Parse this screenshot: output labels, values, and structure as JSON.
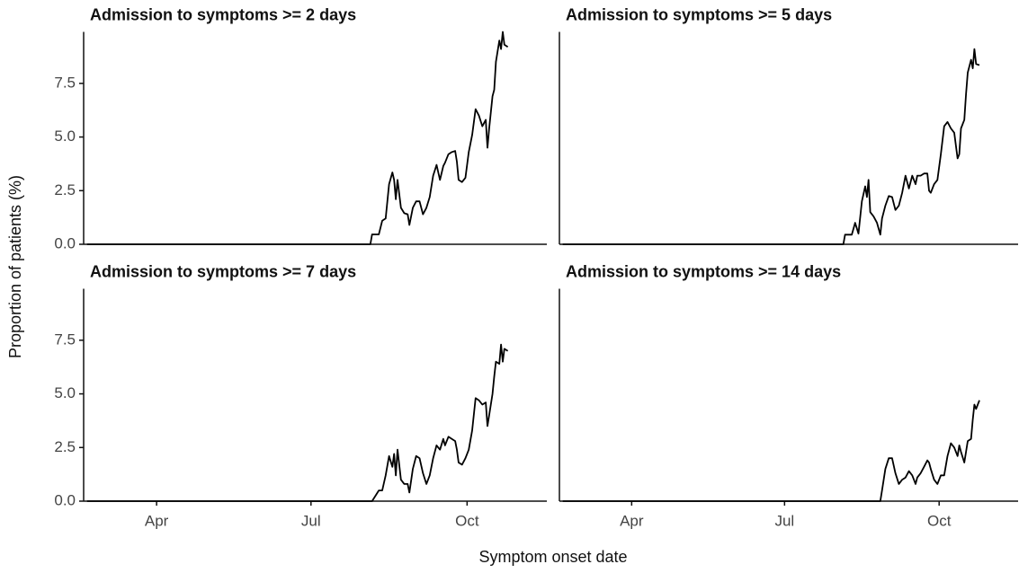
{
  "shared": {
    "xlabel": "Symptom onset date",
    "ylabel": "Proportion of patients (%)"
  },
  "chart_data": [
    {
      "type": "line",
      "title": "Admission to symptoms >= 2 days",
      "color": "#000000",
      "x": [
        50,
        217,
        218,
        222,
        224,
        226,
        228,
        230,
        231,
        232,
        233,
        235,
        237,
        239,
        240,
        242,
        244,
        246,
        248,
        250,
        252,
        254,
        256,
        258,
        260,
        261,
        263,
        265,
        267,
        268,
        269,
        271,
        273,
        275,
        277,
        279,
        281,
        283,
        285,
        286,
        287,
        289,
        290,
        291,
        293,
        294,
        295,
        296,
        298
      ],
      "values": [
        0,
        0,
        0.46,
        0.46,
        1.1,
        1.2,
        2.8,
        3.35,
        3.0,
        2.1,
        3.0,
        1.7,
        1.45,
        1.4,
        0.9,
        1.7,
        2.0,
        2.0,
        1.4,
        1.7,
        2.2,
        3.2,
        3.7,
        3.0,
        3.65,
        3.8,
        4.2,
        4.3,
        4.35,
        3.85,
        3.0,
        2.9,
        3.1,
        4.3,
        5.1,
        6.3,
        6.0,
        5.5,
        5.8,
        4.5,
        5.4,
        6.9,
        7.2,
        8.5,
        9.5,
        9.1,
        9.9,
        9.3,
        9.2
      ],
      "xlim": [
        48,
        321
      ],
      "ylim": [
        0,
        9.9
      ],
      "yticks": [
        {
          "value": 0,
          "label": "0.0"
        },
        2.5,
        {
          "value": 5,
          "label": "5.0"
        },
        7.5
      ]
    },
    {
      "type": "line",
      "title": "Admission to symptoms >= 5 days",
      "color": "#000000",
      "x": [
        50,
        217,
        218,
        222,
        224,
        226,
        228,
        230,
        231,
        232,
        233,
        235,
        237,
        239,
        240,
        242,
        244,
        246,
        248,
        250,
        252,
        254,
        256,
        258,
        260,
        261,
        263,
        265,
        267,
        268,
        269,
        271,
        273,
        275,
        277,
        279,
        281,
        283,
        285,
        286,
        287,
        289,
        290,
        291,
        293,
        294,
        295,
        296,
        298
      ],
      "values": [
        0,
        0,
        0.45,
        0.45,
        1.0,
        0.5,
        2.0,
        2.7,
        2.2,
        3.0,
        1.5,
        1.3,
        1.0,
        0.45,
        1.2,
        1.8,
        2.25,
        2.2,
        1.6,
        1.8,
        2.4,
        3.2,
        2.6,
        3.2,
        2.8,
        3.2,
        3.2,
        3.3,
        3.3,
        2.5,
        2.4,
        2.8,
        3.0,
        4.2,
        5.5,
        5.7,
        5.4,
        5.2,
        4.0,
        4.2,
        5.4,
        5.8,
        7.0,
        8.0,
        8.6,
        8.2,
        9.1,
        8.4,
        8.35
      ],
      "xlim": [
        48,
        321
      ],
      "ylim": [
        0,
        9.9
      ]
    },
    {
      "type": "line",
      "title": "Admission to symptoms >= 7 days",
      "color": "#000000",
      "x": [
        50,
        217,
        218,
        222,
        224,
        226,
        228,
        230,
        231,
        232,
        233,
        235,
        237,
        239,
        240,
        242,
        244,
        246,
        248,
        250,
        252,
        254,
        256,
        258,
        260,
        261,
        263,
        265,
        267,
        268,
        269,
        271,
        273,
        275,
        277,
        279,
        281,
        283,
        285,
        286,
        287,
        289,
        290,
        291,
        293,
        294,
        295,
        296,
        298
      ],
      "values": [
        0,
        0,
        0,
        0.5,
        0.5,
        1.2,
        2.1,
        1.6,
        2.2,
        1.2,
        2.4,
        1.0,
        0.8,
        0.8,
        0.4,
        1.5,
        2.1,
        2.0,
        1.3,
        0.8,
        1.2,
        2.0,
        2.6,
        2.4,
        2.9,
        2.6,
        3.0,
        2.9,
        2.8,
        2.4,
        1.8,
        1.7,
        2.0,
        2.4,
        3.3,
        4.8,
        4.7,
        4.5,
        4.6,
        3.5,
        4.0,
        5.0,
        5.8,
        6.5,
        6.4,
        7.3,
        6.5,
        7.1,
        7.0
      ],
      "xlim": [
        48,
        321
      ],
      "ylim": [
        0,
        9.9
      ],
      "yticks": [
        {
          "value": 0,
          "label": "0.0"
        },
        2.5,
        {
          "value": 5,
          "label": "5.0"
        },
        7.5
      ],
      "xticks": [
        {
          "value": 91,
          "label": "Apr"
        },
        {
          "value": 182,
          "label": "Jul"
        },
        {
          "value": 274,
          "label": "Oct"
        }
      ]
    },
    {
      "type": "line",
      "title": "Admission to symptoms >= 14 days",
      "color": "#000000",
      "x": [
        50,
        217,
        218,
        222,
        224,
        226,
        228,
        230,
        231,
        232,
        233,
        235,
        237,
        239,
        240,
        242,
        244,
        246,
        248,
        250,
        252,
        254,
        256,
        258,
        260,
        261,
        263,
        265,
        267,
        268,
        269,
        271,
        273,
        275,
        277,
        279,
        281,
        283,
        285,
        286,
        287,
        289,
        290,
        291,
        293,
        294,
        295,
        296,
        298
      ],
      "values": [
        0,
        0,
        0,
        0,
        0,
        0,
        0,
        0,
        0,
        0,
        0,
        0,
        0,
        0,
        0.5,
        1.5,
        2.0,
        2.0,
        1.3,
        0.8,
        1.0,
        1.1,
        1.4,
        1.2,
        0.8,
        1.1,
        1.3,
        1.6,
        1.9,
        1.8,
        1.5,
        1.0,
        0.8,
        1.2,
        1.2,
        2.1,
        2.7,
        2.5,
        2.1,
        2.6,
        2.3,
        1.8,
        2.3,
        2.8,
        2.9,
        3.8,
        4.5,
        4.3,
        4.7
      ],
      "xlim": [
        48,
        321
      ],
      "ylim": [
        0,
        9.9
      ],
      "xticks": [
        {
          "value": 91,
          "label": "Apr"
        },
        {
          "value": 182,
          "label": "Jul"
        },
        {
          "value": 274,
          "label": "Oct"
        }
      ]
    }
  ]
}
